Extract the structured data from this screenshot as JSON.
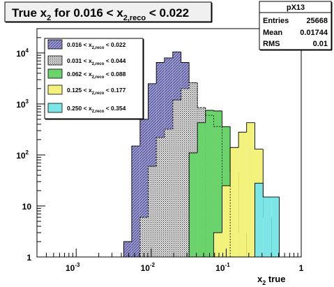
{
  "chart_data": {
    "type": "bar",
    "title_parts": [
      "True x",
      "2",
      " for 0.016 < x",
      "2,reco",
      " < 0.022"
    ],
    "xlabel_parts": [
      "x",
      "2",
      " true"
    ],
    "ylabel": "",
    "x_scale": "log",
    "y_scale": "log",
    "xlim": [
      0.0003,
      1
    ],
    "ylim": [
      1,
      30000
    ],
    "x_ticks": [
      "10",
      "10",
      "1"
    ],
    "x_tick_exps": [
      "-3",
      "-2",
      ""
    ],
    "x_tick_values": [
      0.001,
      0.01,
      1
    ],
    "x_tick_extra": {
      "label": "10",
      "exp": "-1",
      "value": 0.1
    },
    "y_ticks": [
      "10",
      "10",
      "10",
      "10",
      "1"
    ],
    "y_tick_exps": [
      "4",
      "3",
      "2",
      "",
      ""
    ],
    "y_tick_values": [
      10000,
      1000,
      100,
      10,
      1
    ],
    "bin_edges": [
      0.0043,
      0.0055,
      0.0071,
      0.0091,
      0.0117,
      0.015,
      0.0194,
      0.025,
      0.032,
      0.0413,
      0.053,
      0.068,
      0.088,
      0.113,
      0.146,
      0.187,
      0.241,
      0.31,
      0.4,
      0.51
    ],
    "series": [
      {
        "name": "0.016 < x2,reco < 0.022",
        "label_parts": [
          "0.016 < x",
          "2,reco",
          " < 0.022"
        ],
        "color": "#9b9bd1",
        "style": "hatch",
        "values": [
          2,
          150,
          500,
          2500,
          6500,
          8000,
          10500,
          6500,
          2600,
          600,
          0,
          0,
          0,
          0,
          0,
          0,
          0,
          0,
          0
        ]
      },
      {
        "name": "0.031 < x2,reco < 0.044",
        "label_parts": [
          "0.031 < x",
          "2,reco",
          " < 0.044"
        ],
        "color": "#404040",
        "style": "dots",
        "values": [
          0,
          0,
          6,
          60,
          220,
          320,
          1200,
          2000,
          2600,
          850,
          600,
          360,
          25,
          0,
          0,
          0,
          0,
          0,
          0
        ]
      },
      {
        "name": "0.062 < x2,reco < 0.088",
        "label_parts": [
          "0.062 < x",
          "2,reco",
          " < 0.088"
        ],
        "color": "#6bd36b",
        "style": "solid",
        "values": [
          0,
          0,
          0,
          0,
          0,
          0,
          0,
          0,
          110,
          430,
          750,
          730,
          360,
          46,
          3,
          0,
          0,
          0,
          0
        ]
      },
      {
        "name": "0.125 < x2,reco < 0.177",
        "label_parts": [
          "0.125 < x",
          "2,reco",
          " < 0.177"
        ],
        "color": "#f2f27c",
        "style": "solid",
        "values": [
          0,
          0,
          0,
          0,
          0,
          0,
          0,
          0,
          0,
          0,
          0,
          3,
          25,
          140,
          280,
          430,
          130,
          6,
          0
        ]
      },
      {
        "name": "0.250 < x2,reco < 0.354",
        "label_parts": [
          "0.250 < x",
          "2,reco",
          " < 0.354"
        ],
        "color": "#7ce6e6",
        "style": "solid",
        "values": [
          0,
          0,
          0,
          0,
          0,
          0,
          0,
          0,
          0,
          0,
          0,
          0,
          0,
          0,
          0,
          0,
          28,
          15,
          15
        ]
      }
    ],
    "legend_position": "top-left",
    "grid": false
  },
  "stats": {
    "name": "pX13",
    "rows": [
      {
        "label": "Entries",
        "value": "25668"
      },
      {
        "label": "Mean",
        "value": "0.01744"
      },
      {
        "label": "RMS",
        "value": "0.01"
      }
    ]
  }
}
